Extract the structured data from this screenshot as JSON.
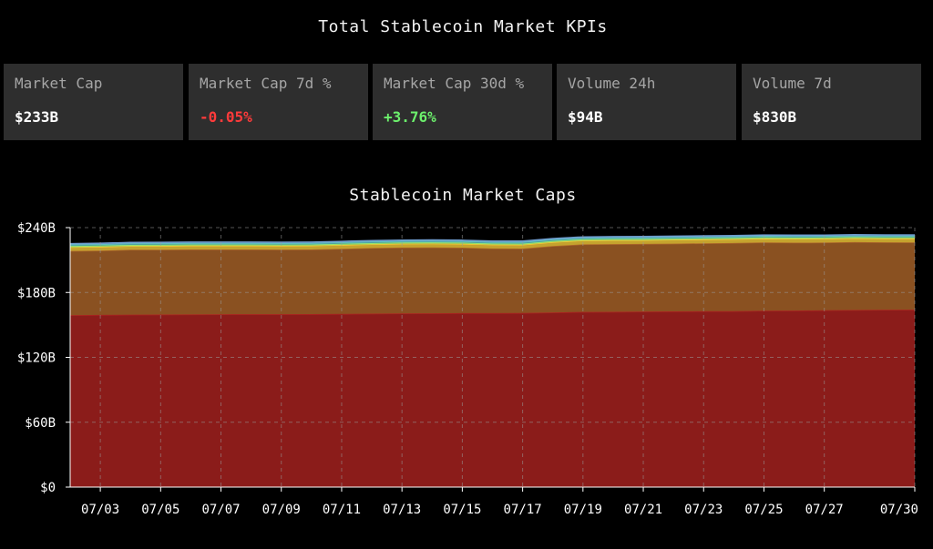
{
  "kpi_title": "Total Stablecoin Market KPIs",
  "kpis": [
    {
      "label": "Market Cap",
      "value": "$233B",
      "color": "#ffffff"
    },
    {
      "label": "Market Cap 7d %",
      "value": "-0.05%",
      "color": "#ff3b3b"
    },
    {
      "label": "Market Cap 30d %",
      "value": "+3.76%",
      "color": "#6cf06c"
    },
    {
      "label": "Volume 24h",
      "value": "$94B",
      "color": "#ffffff"
    },
    {
      "label": "Volume 7d",
      "value": "$830B",
      "color": "#ffffff"
    }
  ],
  "chart_data": {
    "type": "area",
    "stacked": true,
    "title": "Stablecoin Market Caps",
    "xlabel": "",
    "ylabel": "",
    "x": [
      "07/02",
      "07/03",
      "07/04",
      "07/05",
      "07/06",
      "07/07",
      "07/08",
      "07/09",
      "07/10",
      "07/11",
      "07/12",
      "07/13",
      "07/14",
      "07/15",
      "07/16",
      "07/17",
      "07/18",
      "07/19",
      "07/20",
      "07/21",
      "07/22",
      "07/23",
      "07/24",
      "07/25",
      "07/26",
      "07/27",
      "07/28",
      "07/29",
      "07/30"
    ],
    "x_tick_labels": [
      "07/03",
      "07/05",
      "07/07",
      "07/09",
      "07/11",
      "07/13",
      "07/15",
      "07/17",
      "07/19",
      "07/21",
      "07/23",
      "07/25",
      "07/27",
      "07/30"
    ],
    "y_tick_labels": [
      "$0",
      "$60B",
      "$120B",
      "$180B",
      "$240B"
    ],
    "y_ticks": [
      0,
      60,
      120,
      180,
      240
    ],
    "ylim": [
      0,
      240
    ],
    "grid": true,
    "series": [
      {
        "color": "#8b1c1a",
        "values": [
          158.9,
          159.2,
          159.5,
          159.6,
          159.7,
          159.8,
          159.9,
          159.9,
          160.0,
          160.2,
          160.4,
          160.6,
          160.8,
          160.9,
          160.9,
          161.0,
          161.5,
          162.0,
          162.1,
          162.3,
          162.5,
          162.7,
          162.8,
          163.1,
          163.3,
          163.5,
          163.8,
          164.0,
          164.1
        ]
      },
      {
        "color": "#8a5121",
        "values": [
          59.5,
          59.6,
          60.0,
          60.0,
          60.1,
          60.0,
          59.9,
          59.8,
          59.8,
          60.2,
          60.7,
          61.0,
          60.9,
          60.6,
          59.8,
          59.6,
          61.5,
          62.5,
          62.7,
          62.6,
          62.7,
          62.8,
          63.0,
          63.2,
          62.8,
          62.7,
          62.8,
          62.4,
          62.3
        ]
      },
      {
        "color": "#c5a32e",
        "values": [
          3.5,
          3.5,
          3.5,
          3.5,
          3.5,
          3.5,
          3.5,
          3.5,
          3.5,
          3.6,
          3.6,
          3.6,
          3.6,
          3.6,
          3.6,
          3.6,
          3.6,
          3.6,
          3.6,
          3.6,
          3.6,
          3.6,
          3.6,
          3.6,
          3.6,
          3.6,
          3.6,
          3.6,
          3.6
        ]
      },
      {
        "color": "#7fbf5a",
        "values": [
          1.0,
          1.0,
          1.0,
          1.0,
          1.0,
          1.0,
          1.0,
          1.0,
          1.0,
          1.0,
          1.0,
          1.0,
          1.0,
          1.0,
          1.0,
          1.0,
          1.0,
          1.0,
          1.0,
          1.0,
          1.0,
          1.0,
          1.0,
          1.0,
          1.0,
          1.0,
          1.0,
          1.0,
          1.0
        ]
      },
      {
        "color": "#4fa3a0",
        "values": [
          1.5,
          1.5,
          1.5,
          1.5,
          1.5,
          1.5,
          1.5,
          1.5,
          1.5,
          1.5,
          1.5,
          1.5,
          1.5,
          1.5,
          1.5,
          1.5,
          1.5,
          1.5,
          1.5,
          1.5,
          1.5,
          1.5,
          1.5,
          1.5,
          1.5,
          1.5,
          1.5,
          1.5,
          1.5
        ]
      },
      {
        "color": "#5a7fa8",
        "values": [
          0.8,
          0.8,
          0.8,
          0.8,
          0.8,
          0.8,
          0.8,
          0.8,
          0.8,
          0.8,
          0.8,
          0.8,
          0.8,
          0.8,
          0.8,
          0.8,
          0.8,
          0.8,
          0.8,
          0.8,
          0.8,
          0.8,
          0.8,
          0.8,
          0.8,
          0.8,
          0.8,
          0.8,
          0.8
        ]
      }
    ]
  }
}
